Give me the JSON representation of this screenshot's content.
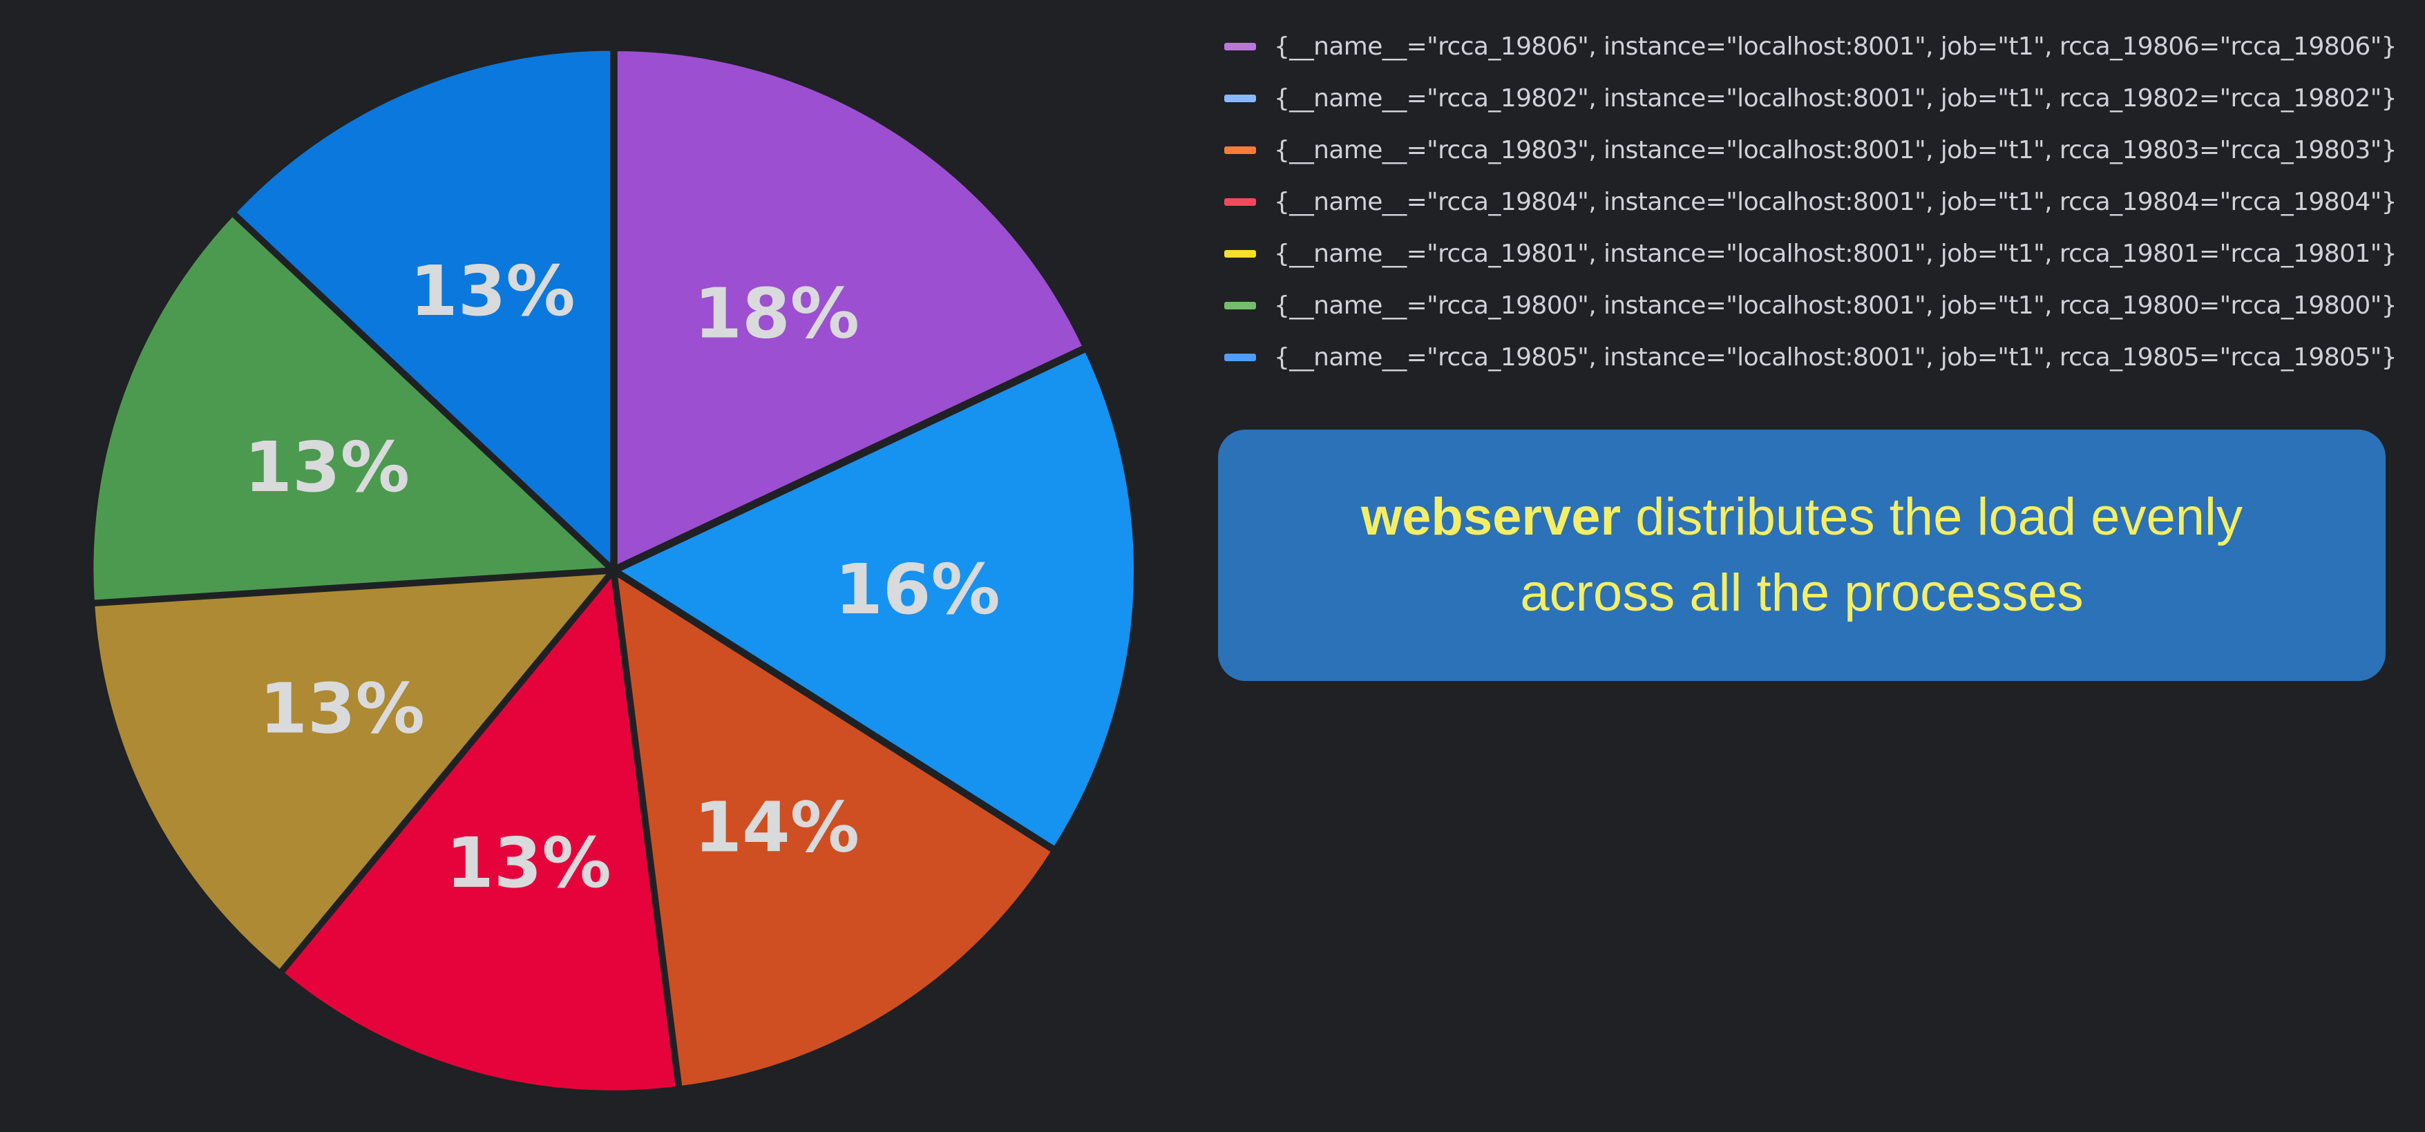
{
  "chart_data": {
    "type": "pie",
    "slices": [
      {
        "label": "{__name__=\"rcca_19806\", instance=\"localhost:8001\", job=\"t1\", rcca_19806=\"rcca_19806\"}",
        "value": 18,
        "display": "18%",
        "color": "#9c4fd0",
        "legend_color": "#b877d9"
      },
      {
        "label": "{__name__=\"rcca_19802\", instance=\"localhost:8001\", job=\"t1\", rcca_19802=\"rcca_19802\"}",
        "value": 16,
        "display": "16%",
        "color": "#1692f0",
        "legend_color": "#8ab8ff"
      },
      {
        "label": "{__name__=\"rcca_19803\", instance=\"localhost:8001\", job=\"t1\", rcca_19803=\"rcca_19803\"}",
        "value": 14,
        "display": "14%",
        "color": "#cf4f22",
        "legend_color": "#ff7b3a"
      },
      {
        "label": "{__name__=\"rcca_19804\", instance=\"localhost:8001\", job=\"t1\", rcca_19804=\"rcca_19804\"}",
        "value": 13,
        "display": "13%",
        "color": "#e6033b",
        "legend_color": "#f2495c"
      },
      {
        "label": "{__name__=\"rcca_19801\", instance=\"localhost:8001\", job=\"t1\", rcca_19801=\"rcca_19801\"}",
        "value": 13,
        "display": "13%",
        "color": "#ad8a33",
        "legend_color": "#fade2a"
      },
      {
        "label": "{__name__=\"rcca_19800\", instance=\"localhost:8001\", job=\"t1\", rcca_19800=\"rcca_19800\"}",
        "value": 13,
        "display": "13%",
        "color": "#4c9a4f",
        "legend_color": "#73bf69"
      },
      {
        "label": "{__name__=\"rcca_19805\", instance=\"localhost:8001\", job=\"t1\", rcca_19805=\"rcca_19805\"}",
        "value": 13,
        "display": "13%",
        "color": "#0a78dd",
        "legend_color": "#4f9dff"
      }
    ],
    "legend_position": "right"
  },
  "callout": {
    "strong": "webserver",
    "text": " distributes the load evenly across all the processes"
  }
}
